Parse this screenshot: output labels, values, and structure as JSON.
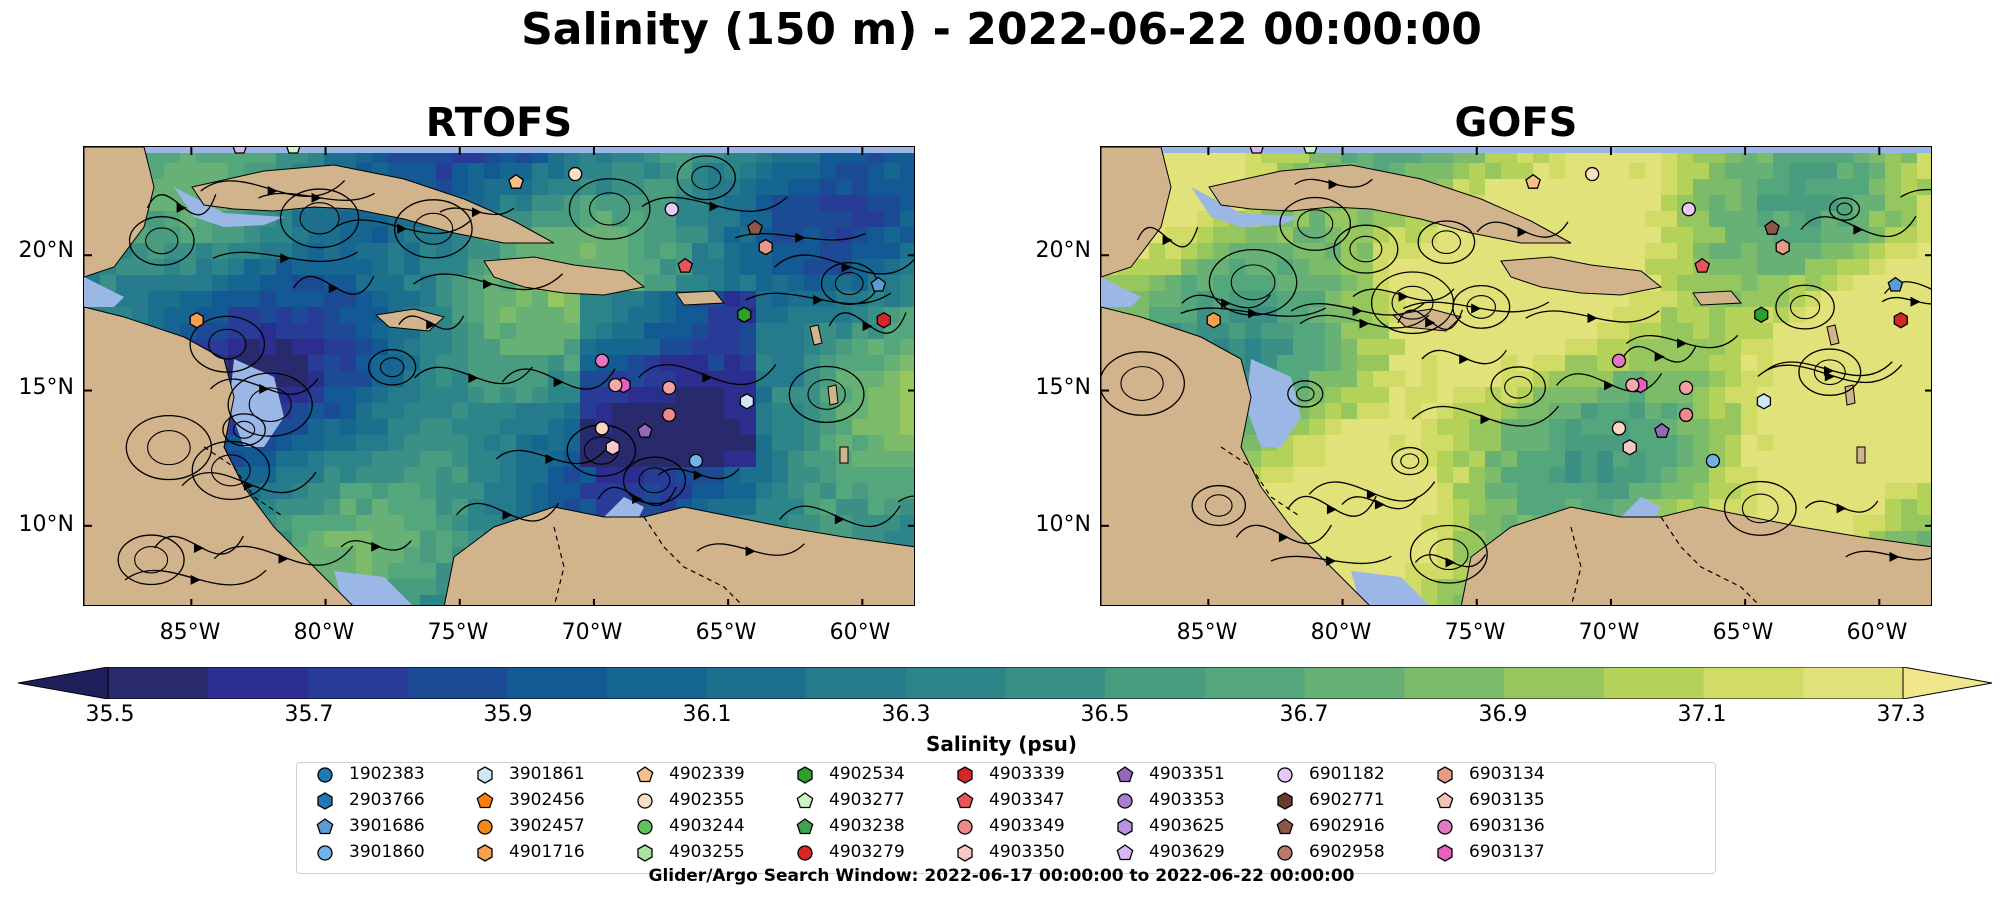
{
  "suptitle": "Salinity (150 m) - 2022-06-22 00:00:00",
  "colors": {
    "land": "#d2b48c",
    "shelf": "#9bb7e6",
    "colormap": [
      "#282a6c",
      "#2b2e8f",
      "#283b96",
      "#1c4a94",
      "#135993",
      "#156690",
      "#1c708d",
      "#257a8b",
      "#2c8589",
      "#3b9086",
      "#4a9c80",
      "#54a67c",
      "#67b076",
      "#7cbb6a",
      "#96c75f",
      "#b4d25a",
      "#d0dc66",
      "#e2e27a"
    ],
    "over": "#f0e68c",
    "under": "#1f1f5b"
  },
  "chart_data": [
    {
      "type": "heatmap",
      "title": "RTOFS",
      "variable": "Salinity (150 m)",
      "xlabel": "",
      "ylabel": "",
      "x_ticks": [
        "85°W",
        "80°W",
        "75°W",
        "70°W",
        "65°W",
        "60°W"
      ],
      "y_ticks": [
        "20°N",
        "15°N",
        "10°N"
      ],
      "xlim": [
        -89,
        -58
      ],
      "ylim": [
        7,
        24
      ],
      "dominant_range_psu": [
        35.7,
        36.9
      ],
      "overlay": "surface current streamlines"
    },
    {
      "type": "heatmap",
      "title": "GOFS",
      "variable": "Salinity (150 m)",
      "xlabel": "",
      "ylabel": "",
      "x_ticks": [
        "85°W",
        "80°W",
        "75°W",
        "70°W",
        "65°W",
        "60°W"
      ],
      "y_ticks": [
        "20°N",
        "15°N",
        "10°N"
      ],
      "xlim": [
        -89,
        -58
      ],
      "ylim": [
        7,
        24
      ],
      "dominant_range_psu": [
        36.4,
        37.1
      ],
      "overlay": "surface current streamlines"
    }
  ],
  "colorbar": {
    "label": "Salinity (psu)",
    "ticks": [
      "35.5",
      "35.7",
      "35.9",
      "36.1",
      "36.3",
      "36.5",
      "36.7",
      "36.9",
      "37.1",
      "37.3"
    ],
    "min": 35.5,
    "max": 37.3,
    "step": 0.1,
    "extend": "both"
  },
  "profilers": [
    {
      "id": "1902383",
      "marker": "circle",
      "color": "#1f77b4",
      "lon": null,
      "lat": null
    },
    {
      "id": "2903766",
      "marker": "hexagon",
      "color": "#1f77b4",
      "lon": null,
      "lat": null
    },
    {
      "id": "3901686",
      "marker": "pentagon",
      "color": "#5b9bd5",
      "lon": -59.4,
      "lat": 18.9
    },
    {
      "id": "3901860",
      "marker": "circle",
      "color": "#6fb3e8",
      "lon": -66.2,
      "lat": 12.4
    },
    {
      "id": "3901861",
      "marker": "hexagon",
      "color": "#cfe8f8",
      "lon": -64.3,
      "lat": 14.6
    },
    {
      "id": "3902456",
      "marker": "pentagon",
      "color": "#ff7f0e",
      "lon": null,
      "lat": null
    },
    {
      "id": "3902457",
      "marker": "circle",
      "color": "#f0891c",
      "lon": null,
      "lat": null
    },
    {
      "id": "4901716",
      "marker": "hexagon",
      "color": "#f5a04a",
      "lon": -84.8,
      "lat": 17.6
    },
    {
      "id": "4902339",
      "marker": "pentagon",
      "color": "#f7c08a",
      "lon": -72.9,
      "lat": 22.7
    },
    {
      "id": "4902355",
      "marker": "circle",
      "color": "#fbe0c4",
      "lon": -70.7,
      "lat": 23.0
    },
    {
      "id": "4903244",
      "marker": "circle",
      "color": "#5ec25e",
      "lon": null,
      "lat": null
    },
    {
      "id": "4903255",
      "marker": "hexagon",
      "color": "#a8e6a0",
      "lon": null,
      "lat": null
    },
    {
      "id": "4902534",
      "marker": "hexagon",
      "color": "#2ca02c",
      "lon": -64.4,
      "lat": 17.8
    },
    {
      "id": "4903277",
      "marker": "pentagon",
      "color": "#c8f5c0",
      "lon": -81.2,
      "lat": 24.0
    },
    {
      "id": "4903238",
      "marker": "pentagon",
      "color": "#3fa34d",
      "lon": null,
      "lat": null
    },
    {
      "id": "4903279",
      "marker": "circle",
      "color": "#d62728",
      "lon": null,
      "lat": null
    },
    {
      "id": "4903339",
      "marker": "hexagon",
      "color": "#d62728",
      "lon": -59.2,
      "lat": 17.6
    },
    {
      "id": "4903347",
      "marker": "pentagon",
      "color": "#e8555a",
      "lon": -66.6,
      "lat": 19.6
    },
    {
      "id": "4903349",
      "marker": "circle",
      "color": "#f08a8a",
      "lon": -67.2,
      "lat": 14.1
    },
    {
      "id": "4903350",
      "marker": "hexagon",
      "color": "#f8c8c8",
      "lon": -69.3,
      "lat": 12.9
    },
    {
      "id": "4903351",
      "marker": "pentagon",
      "color": "#9467bd",
      "lon": -68.1,
      "lat": 13.5
    },
    {
      "id": "4903353",
      "marker": "circle",
      "color": "#a77fd0",
      "lon": null,
      "lat": null
    },
    {
      "id": "4903625",
      "marker": "hexagon",
      "color": "#b892e0",
      "lon": null,
      "lat": null
    },
    {
      "id": "4903629",
      "marker": "pentagon",
      "color": "#d9b8f3",
      "lon": -83.2,
      "lat": 24.0
    },
    {
      "id": "6901182",
      "marker": "circle",
      "color": "#e9c9f8",
      "lon": -67.1,
      "lat": 21.7
    },
    {
      "id": "6902771",
      "marker": "hexagon",
      "color": "#6b3a2e",
      "lon": null,
      "lat": null
    },
    {
      "id": "6902916",
      "marker": "pentagon",
      "color": "#8c564b",
      "lon": -64.0,
      "lat": 21.0
    },
    {
      "id": "6902958",
      "marker": "circle",
      "color": "#b97a6c",
      "lon": null,
      "lat": null
    },
    {
      "id": "6903134",
      "marker": "hexagon",
      "color": "#e89a86",
      "lon": -63.6,
      "lat": 20.3
    },
    {
      "id": "6903135",
      "marker": "pentagon",
      "color": "#f6c3b6",
      "lon": null,
      "lat": null
    },
    {
      "id": "6903136",
      "marker": "circle",
      "color": "#e377c2",
      "lon": -69.7,
      "lat": 16.1
    },
    {
      "id": "6903137",
      "marker": "hexagon",
      "color": "#e85fbf",
      "lon": -68.9,
      "lat": 15.2
    }
  ],
  "extra_markers": [
    {
      "marker": "circle",
      "color": "#f7a8a8",
      "lon": -69.2,
      "lat": 15.2
    },
    {
      "marker": "circle",
      "color": "#f4a0a0",
      "lon": -67.2,
      "lat": 15.1
    },
    {
      "marker": "circle",
      "color": "#fbd7c0",
      "lon": -69.7,
      "lat": 13.6
    }
  ],
  "footnote": "Glider/Argo Search Window: 2022-06-17 00:00:00 to 2022-06-22 00:00:00"
}
